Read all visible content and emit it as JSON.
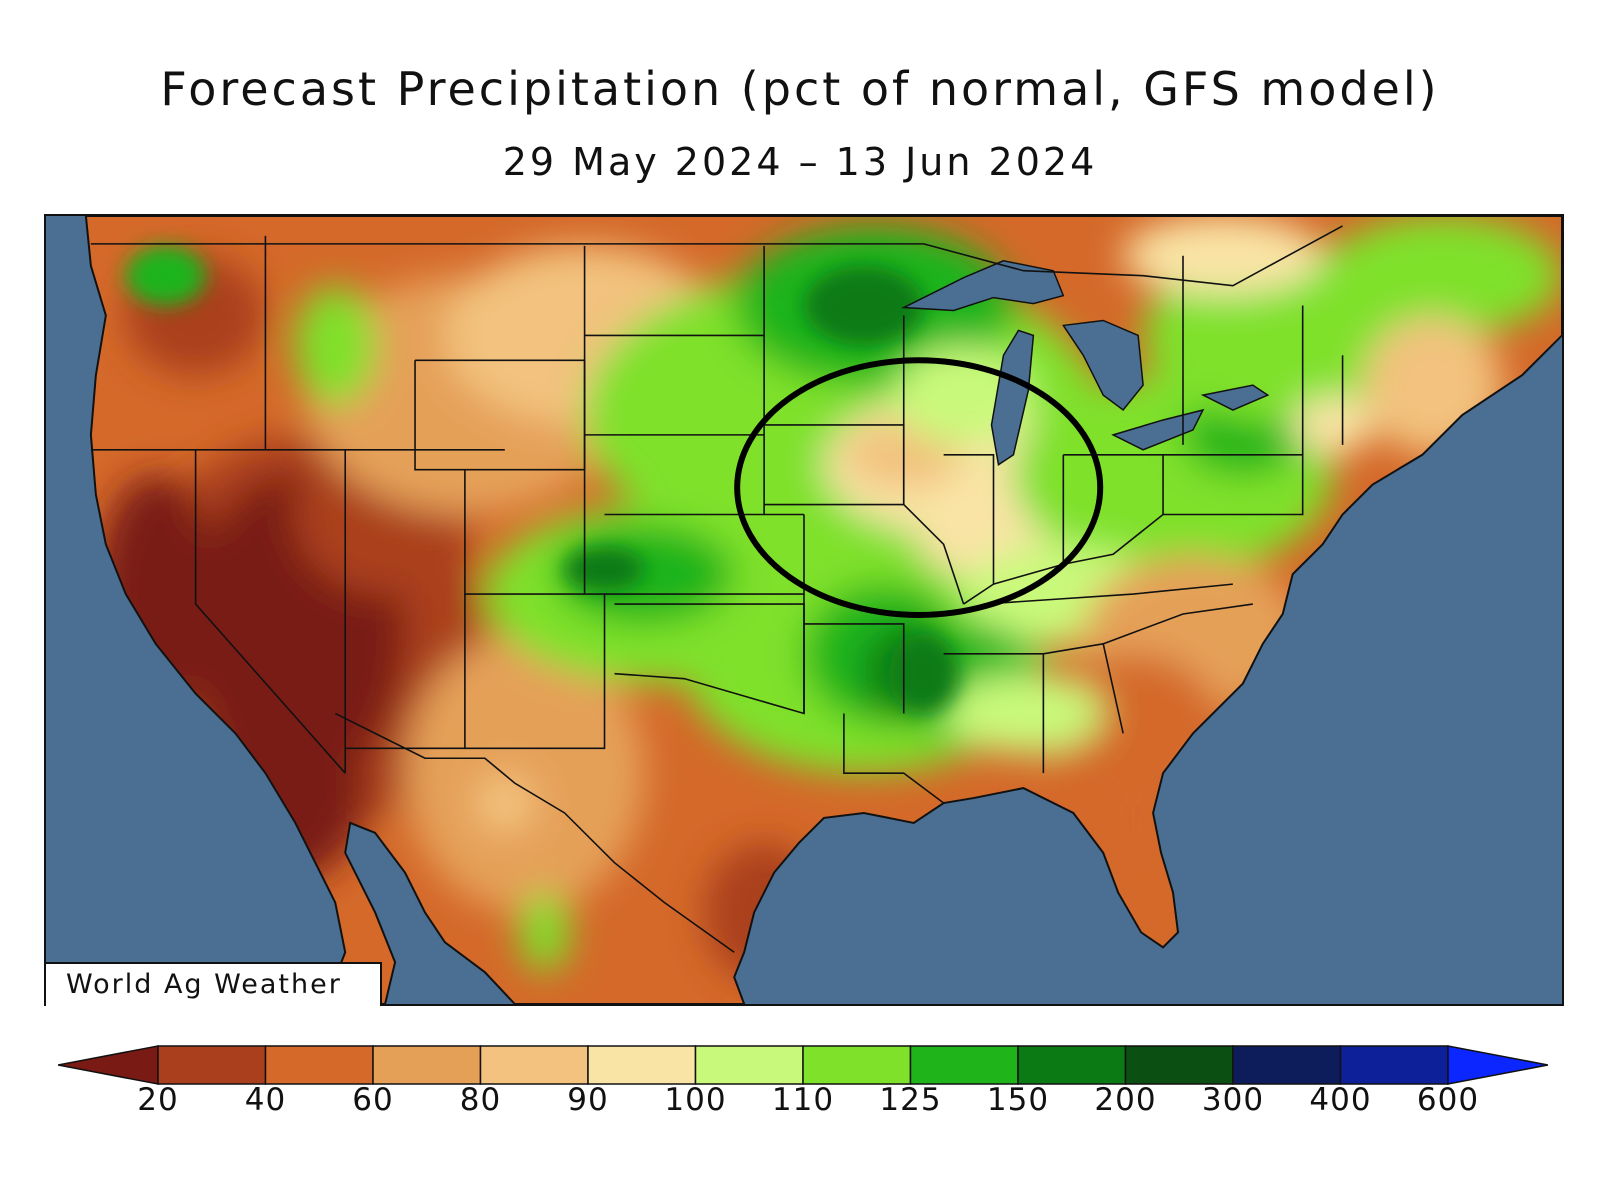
{
  "title": "Forecast Precipitation (pct of normal, GFS model)",
  "subtitle": "29 May 2024 – 13 Jun 2024",
  "credit": "World Ag Weather",
  "annotation": "black ellipse circling the central Corn Belt (Iowa, Illinois, Indiana)",
  "colors": {
    "ocean": "#4a6f93",
    "outline": "#111111"
  },
  "legend": {
    "bins": [
      {
        "color": "#7a1a14"
      },
      {
        "color": "#aa3f1d"
      },
      {
        "color": "#d4692a"
      },
      {
        "color": "#e5a058"
      },
      {
        "color": "#f2c27e"
      },
      {
        "color": "#f9e4a6"
      },
      {
        "color": "#c9f97a"
      },
      {
        "color": "#7fe12a"
      },
      {
        "color": "#1fb41a"
      },
      {
        "color": "#0c7a14"
      },
      {
        "color": "#0b4f12"
      },
      {
        "color": "#0d1c5a"
      },
      {
        "color": "#0e1f9a"
      },
      {
        "color": "#0b26ff"
      }
    ],
    "tick_labels": [
      "20",
      "40",
      "60",
      "80",
      "90",
      "100",
      "110",
      "125",
      "150",
      "200",
      "300",
      "400",
      "600"
    ]
  }
}
